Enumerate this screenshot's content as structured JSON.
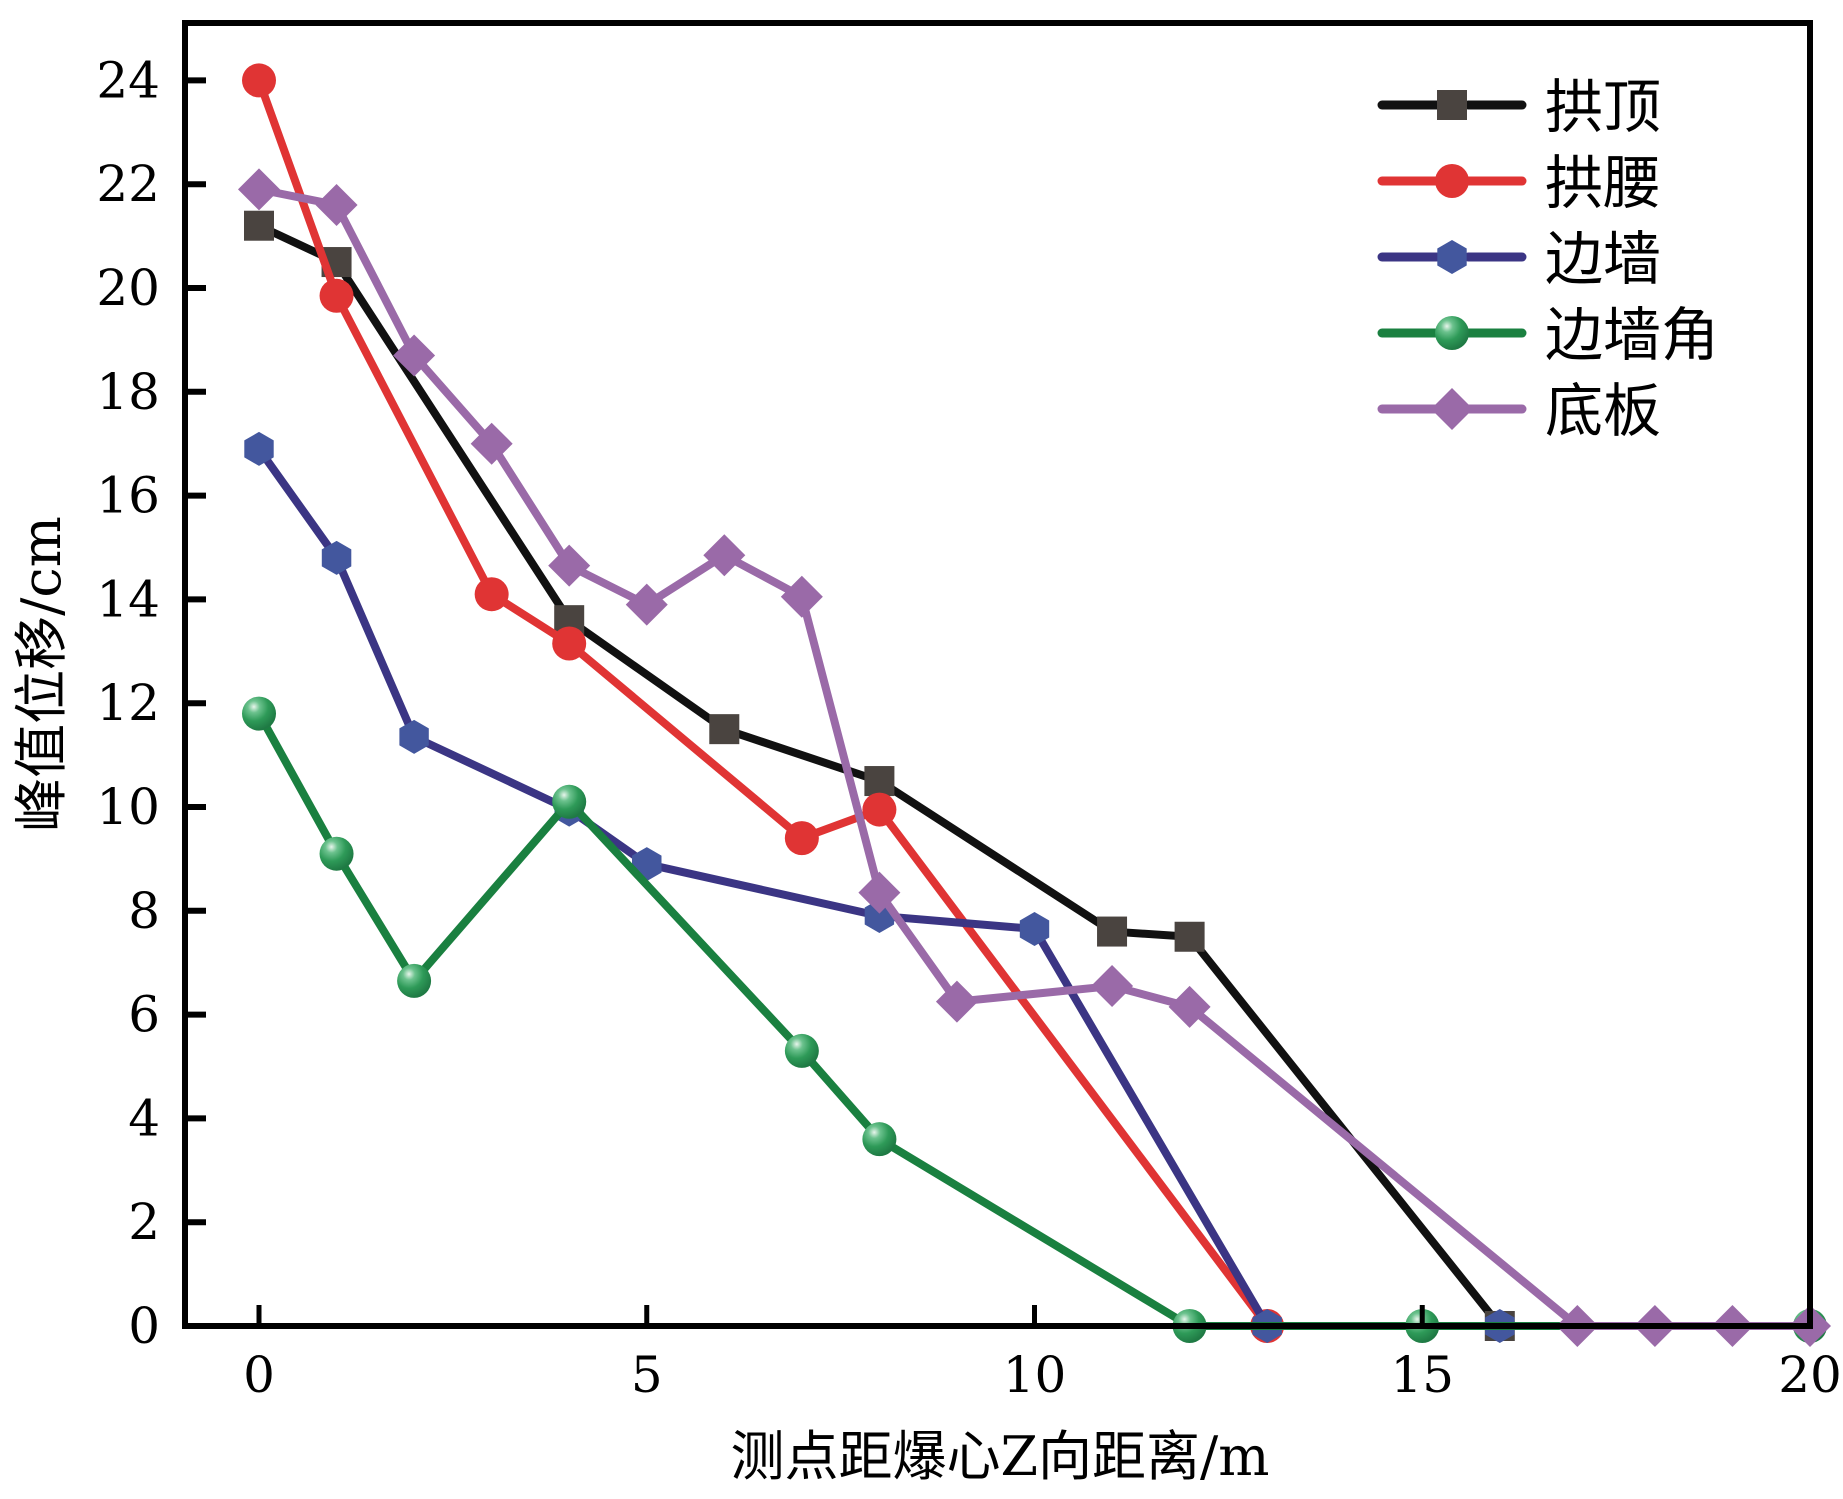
{
  "chart_data": {
    "type": "line",
    "title": "",
    "xlabel": "测点距爆心Z向距离/m",
    "ylabel": "峰值位移/cm",
    "xlim": [
      -1,
      20
    ],
    "ylim": [
      0,
      25.1
    ],
    "xticks": [
      0,
      5,
      10,
      15,
      20
    ],
    "xtick_labels": [
      "0",
      "5",
      "10",
      "15",
      "20"
    ],
    "yticks": [
      0,
      2,
      4,
      6,
      8,
      10,
      12,
      14,
      16,
      18,
      20,
      22,
      24
    ],
    "ytick_labels": [
      "0",
      "2",
      "4",
      "6",
      "8",
      "10",
      "12",
      "14",
      "16",
      "18",
      "20",
      "22",
      "24"
    ],
    "grid": false,
    "legend_position": "top-right",
    "series": [
      {
        "name": "拱顶",
        "color": "#111111",
        "marker_color": "#4a4440",
        "marker": "square",
        "x": [
          0,
          1,
          4,
          6,
          8,
          11,
          12,
          16
        ],
        "y": [
          21.2,
          20.5,
          13.6,
          11.5,
          10.5,
          7.6,
          7.5,
          0
        ]
      },
      {
        "name": "拱腰",
        "color": "#e03434",
        "marker_color": "#e03434",
        "marker": "circle",
        "x": [
          0,
          1,
          3,
          4,
          7,
          8,
          13
        ],
        "y": [
          24.0,
          19.85,
          14.1,
          13.15,
          9.4,
          9.95,
          0
        ]
      },
      {
        "name": "边墙",
        "color": "#3b3584",
        "marker_color": "#43579e",
        "marker": "hexagon",
        "x": [
          0,
          1,
          2,
          4,
          5,
          8,
          10,
          13,
          16
        ],
        "y": [
          16.9,
          14.8,
          11.35,
          9.95,
          8.9,
          7.9,
          7.65,
          0,
          0
        ]
      },
      {
        "name": "边墙角",
        "color": "#1a8040",
        "marker_color": "#2e9a58",
        "marker": "sphere",
        "x": [
          0,
          1,
          2,
          4,
          7,
          8,
          12,
          15,
          20
        ],
        "y": [
          11.8,
          9.1,
          6.65,
          10.1,
          5.3,
          3.6,
          0,
          0,
          0
        ]
      },
      {
        "name": "底板",
        "color": "#9a6aa8",
        "marker_color": "#9a6aa8",
        "marker": "diamond",
        "x": [
          0,
          1,
          2,
          3,
          4,
          5,
          6,
          7,
          8,
          9,
          11,
          12,
          17,
          18,
          19,
          20
        ],
        "y": [
          21.9,
          21.6,
          18.7,
          17.0,
          14.65,
          13.9,
          14.85,
          14.05,
          8.35,
          6.25,
          6.55,
          6.15,
          0,
          0,
          0,
          0
        ]
      }
    ]
  }
}
